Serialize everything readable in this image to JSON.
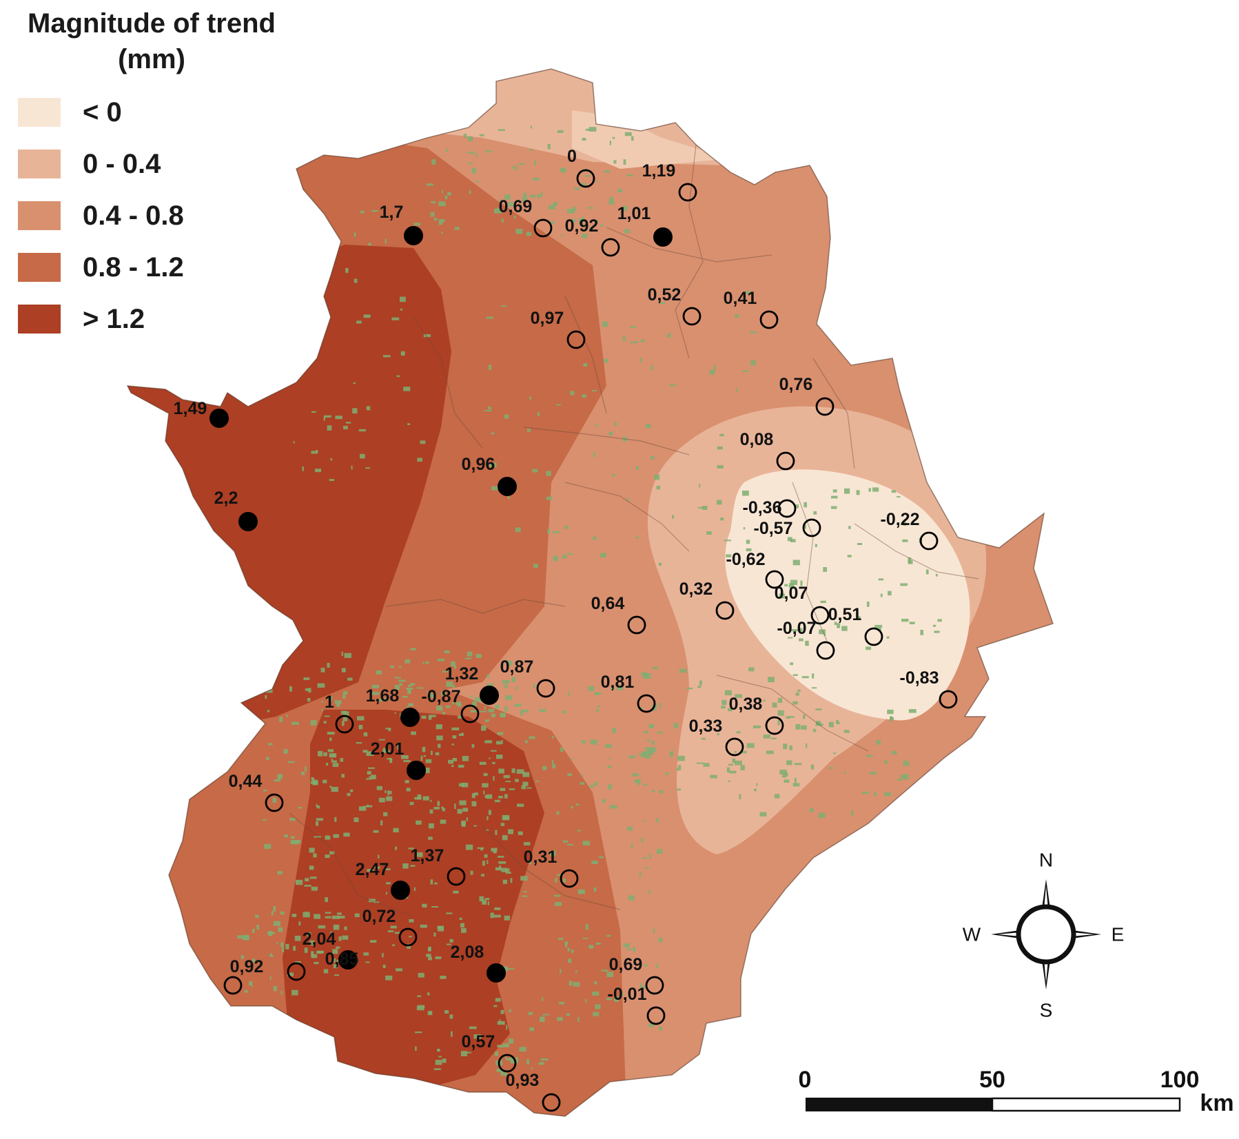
{
  "legend": {
    "title_line1": "Magnitude of trend",
    "title_line2": "(mm)",
    "classes": [
      {
        "label": "< 0",
        "color": "#f8e6d4"
      },
      {
        "label": "0 - 0.4",
        "color": "#e8b498"
      },
      {
        "label": "0.4 - 0.8",
        "color": "#d9906f"
      },
      {
        "label": "0.8 - 1.2",
        "color": "#c66a47"
      },
      {
        "label": "> 1.2",
        "color": "#ac3f24"
      }
    ]
  },
  "map": {
    "vegetation_color": "#7fae72",
    "station_labels": [
      "0",
      "1,19",
      "0,69",
      "0,92",
      "1,01",
      "1,7",
      "0,52",
      "0,41",
      "0,97",
      "0,76",
      "1,49",
      "0,08",
      "0,96",
      "2,2",
      "-0,36",
      "-0,57",
      "-0,22",
      "-0,62",
      "0,32",
      "0,07",
      "0,64",
      "-0,07",
      "0,51",
      "1,32",
      "0,87",
      "0,81",
      "-0,83",
      "1",
      "1,68",
      "-0,87",
      "0,38",
      "0,33",
      "2,01",
      "0,44",
      "1,37",
      "0,31",
      "2,47",
      "0,72",
      "2,04",
      "0,85",
      "2,08",
      "0,92",
      "0,69",
      "-0,01",
      "0,57",
      "0,93"
    ],
    "station_significant": [
      false,
      false,
      false,
      false,
      true,
      true,
      false,
      false,
      false,
      false,
      true,
      false,
      true,
      true,
      false,
      false,
      false,
      false,
      false,
      false,
      false,
      false,
      false,
      true,
      false,
      false,
      false,
      false,
      true,
      false,
      false,
      false,
      true,
      false,
      false,
      false,
      true,
      false,
      true,
      false,
      true,
      false,
      false,
      false,
      false,
      false
    ]
  },
  "compass": {
    "north": "N",
    "south": "S",
    "east": "E",
    "west": "W"
  },
  "scale_bar": {
    "tick_labels": [
      "0",
      "50",
      "100"
    ],
    "unit": "km"
  }
}
